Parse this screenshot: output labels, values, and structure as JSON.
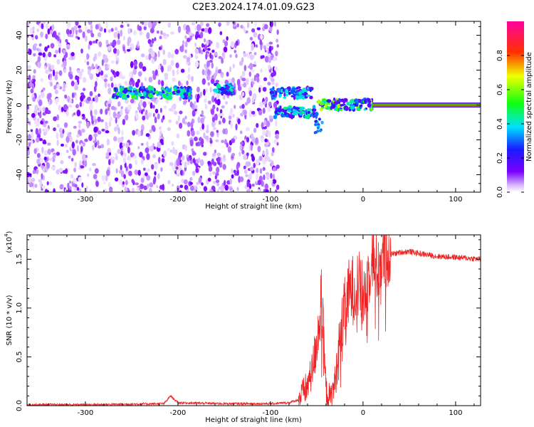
{
  "title": "C2E3.2024.174.01.09.G23",
  "chart_data": [
    {
      "type": "heatmap",
      "xlabel": "Height of straight line (km)",
      "ylabel": "Frequency (Hz)",
      "xlim": [
        -363,
        127
      ],
      "ylim": [
        -50,
        48
      ],
      "xticks": [
        -300,
        -200,
        -100,
        0,
        100
      ],
      "yticks": [
        -40,
        -20,
        0,
        20,
        40
      ],
      "colorbar": {
        "label": "Normalized spectral amplitude",
        "range": [
          0,
          1
        ],
        "ticks": [
          "0.0",
          "0.2",
          "0.4",
          "0.6",
          "0.8"
        ],
        "colormap": "rainbow (white-violet-blue-cyan-green-yellow-red-magenta)"
      },
      "features": {
        "noise_region_x": [
          -363,
          -92
        ],
        "noise_gap_x": [
          -215,
          -202
        ],
        "band_segments": [
          {
            "x": [
              -270,
              -185
            ],
            "freq": 7,
            "peak": 0.45
          },
          {
            "x": [
              -160,
              -140
            ],
            "freq": 9,
            "peak": 0.35
          },
          {
            "x": [
              -100,
              -55
            ],
            "freq": 7,
            "peak": 0.3
          },
          {
            "x": [
              -95,
              -50
            ],
            "freq": -4,
            "peak": 0.35
          },
          {
            "x": [
              -50,
              10
            ],
            "freq": 0,
            "peak": 0.55
          }
        ],
        "carrier_line": {
          "x": [
            10,
            127
          ],
          "freq": 0,
          "peak": 1.0
        }
      }
    },
    {
      "type": "line",
      "xlabel": "Height of straight line (km)",
      "ylabel": "SNR (10 * v/v)",
      "yscale_label": "(x10",
      "yscale_exp": "4",
      "xlim": [
        -363,
        127
      ],
      "ylim": [
        0,
        1.75
      ],
      "xticks": [
        -300,
        -200,
        -100,
        0,
        100
      ],
      "yticks": [
        "0.0",
        "0.5",
        "1.0",
        "1.5"
      ],
      "series": [
        {
          "color": "#ee2222",
          "x": [
            -363,
            -300,
            -250,
            -215,
            -208,
            -200,
            -150,
            -100,
            -80,
            -70,
            -60,
            -55,
            -50,
            -45,
            -42,
            -40,
            -35,
            -30,
            -25,
            -20,
            -15,
            -10,
            -5,
            0,
            5,
            10,
            15,
            20,
            25,
            30,
            40,
            50,
            60,
            80,
            100,
            127
          ],
          "y": [
            0.01,
            0.01,
            0.015,
            0.02,
            0.1,
            0.03,
            0.02,
            0.02,
            0.03,
            0.06,
            0.2,
            0.35,
            0.65,
            1.05,
            0.55,
            0.15,
            0.07,
            0.25,
            0.7,
            0.95,
            1.15,
            1.2,
            1.25,
            1.1,
            1.3,
            1.55,
            1.4,
            1.5,
            1.55,
            1.55,
            1.57,
            1.58,
            1.56,
            1.53,
            1.52,
            1.5
          ]
        }
      ]
    }
  ],
  "colors": {
    "line": "#ee2222",
    "axis": "#000000"
  }
}
